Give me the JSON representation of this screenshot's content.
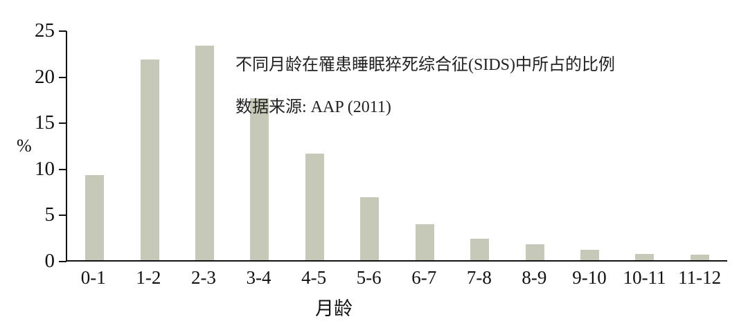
{
  "chart_data": {
    "type": "bar",
    "title": "不同月龄在罹患睡眠猝死综合征(SIDS)中所占的比例",
    "source": "数据来源: AAP (2011)",
    "xlabel": "月龄",
    "ylabel": "%",
    "categories": [
      "0-1",
      "1-2",
      "2-3",
      "3-4",
      "4-5",
      "5-6",
      "6-7",
      "7-8",
      "8-9",
      "9-10",
      "10-11",
      "11-12"
    ],
    "values": [
      9.2,
      21.8,
      23.3,
      17.6,
      11.6,
      6.8,
      3.9,
      2.3,
      1.7,
      1.1,
      0.7,
      0.6
    ],
    "ylim": [
      0,
      25
    ],
    "yticks": [
      0,
      5,
      10,
      15,
      20,
      25
    ],
    "bar_color": "#c6c9b7",
    "grid": false,
    "legend": false
  }
}
